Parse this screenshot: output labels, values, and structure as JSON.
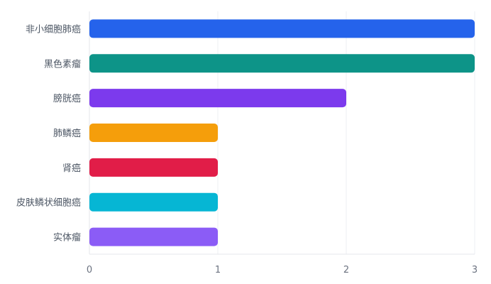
{
  "chart_data": {
    "type": "bar",
    "orientation": "horizontal",
    "title": "",
    "xlabel": "",
    "ylabel": "",
    "categories": [
      "非小细胞肺癌",
      "黑色素瘤",
      "膀胱癌",
      "肺鳞癌",
      "肾癌",
      "皮肤鳞状细胞癌",
      "实体瘤"
    ],
    "values": [
      3,
      3,
      2,
      1,
      1,
      1,
      1
    ],
    "colors": [
      "#2563eb",
      "#0d9488",
      "#7c3aed",
      "#f59e0b",
      "#e11d48",
      "#06b6d4",
      "#8b5cf6"
    ],
    "xlim": [
      0,
      3
    ],
    "xticks": [
      "0",
      "1",
      "2",
      "3"
    ],
    "grid": true,
    "legend": "none"
  }
}
